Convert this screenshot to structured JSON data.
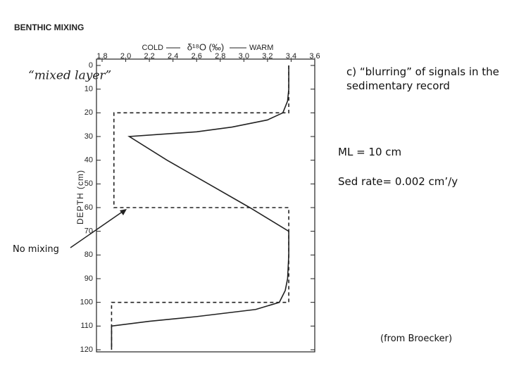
{
  "chart_data": {
    "type": "line",
    "title": "BENTHIC MIXING",
    "x_label": "δ¹⁸O (‰)",
    "x_label_left": "COLD",
    "x_label_right": "WARM",
    "y_label": "DEPTH (cm)",
    "annotation": "“mixed layer”",
    "annotation_color": "#d0288a",
    "xlim": [
      1.8,
      3.6
    ],
    "xticks": [
      1.8,
      {
        "value": 2,
        "label": "2.0"
      },
      2.2,
      2.4,
      2.6,
      2.8,
      {
        "value": 3,
        "label": "3.0"
      },
      3.2,
      3.4,
      3.6
    ],
    "ylim": [
      120,
      0
    ],
    "yticks": [
      0,
      10,
      20,
      30,
      40,
      50,
      60,
      70,
      80,
      90,
      100,
      110,
      120
    ],
    "series": [
      {
        "dash": true,
        "color": "#222222",
        "x": [
          3.38,
          3.38,
          1.9,
          1.9,
          3.38,
          3.38,
          1.88,
          1.88
        ],
        "values": [
          0,
          20,
          20,
          60,
          60,
          100,
          100,
          120
        ]
      },
      {
        "dash": false,
        "color": "#222222",
        "x": [
          3.38,
          3.38,
          3.37,
          3.33,
          3.2,
          2.9,
          2.6,
          2.03,
          2.35,
          2.7,
          3.05,
          3.38,
          3.38,
          3.37,
          3.35,
          3.3,
          3.1,
          2.6,
          2.2,
          1.88,
          1.88
        ],
        "values": [
          0,
          10,
          15,
          20,
          23,
          26,
          28,
          30,
          40,
          50,
          60,
          70,
          80,
          90,
          95,
          100,
          103,
          106,
          108,
          110,
          120
        ]
      }
    ]
  },
  "slide": {
    "heading": "c) “blurring” of signals in the sedimentary record",
    "ml": "ML = 10 cm",
    "sed_rate": "Sed rate= 0.002 cm’/y",
    "no_mixing": "No mixing",
    "source": "(from Broecker)"
  }
}
